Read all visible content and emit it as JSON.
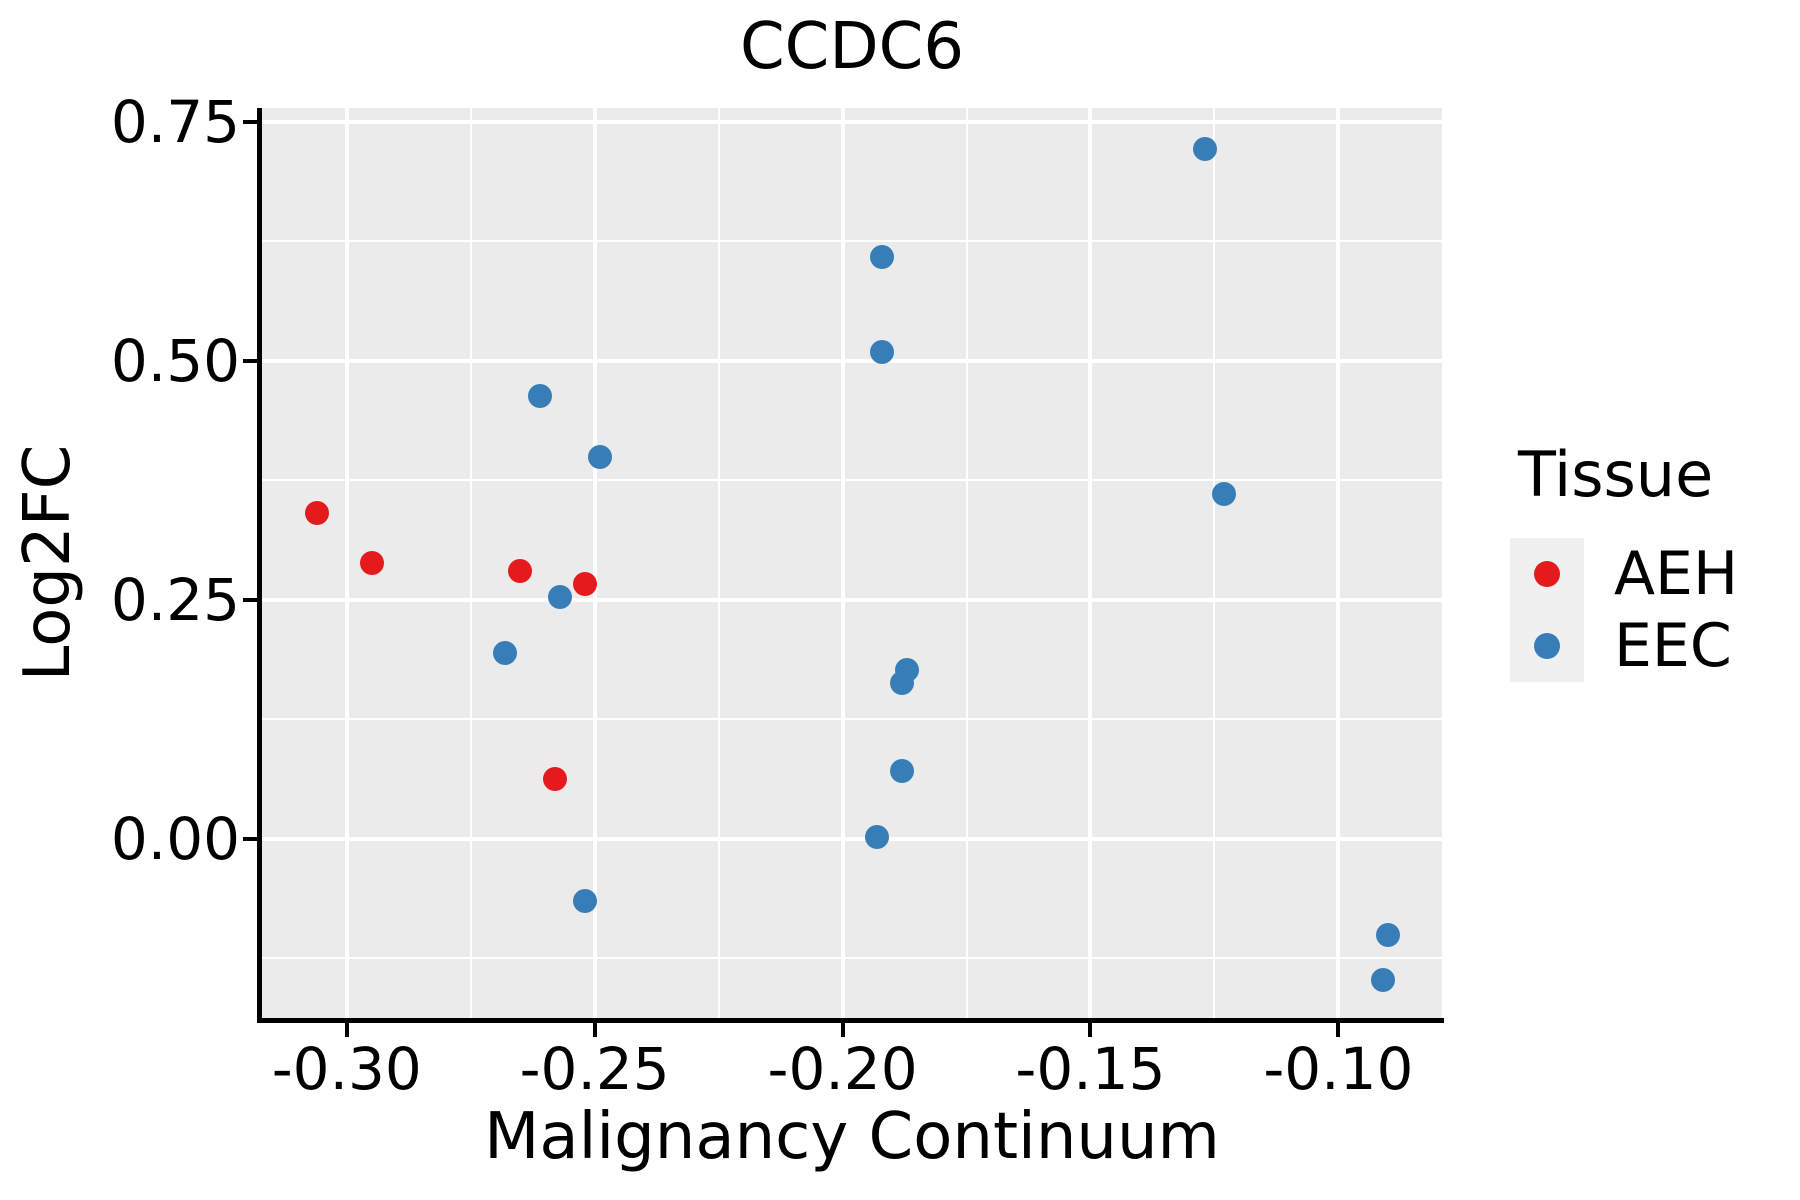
{
  "chart_data": {
    "type": "scatter",
    "title": "CCDC6",
    "xlabel": "Malignancy Continuum",
    "ylabel": "Log2FC",
    "xlim": [
      -0.3171,
      -0.0791
    ],
    "ylim": [
      -0.1873,
      0.7646
    ],
    "x_ticks": [
      -0.3,
      -0.25,
      -0.2,
      -0.15,
      -0.1
    ],
    "x_tick_labels": [
      "-0.30",
      "-0.25",
      "-0.20",
      "-0.15",
      "-0.10"
    ],
    "y_ticks": [
      0.0,
      0.25,
      0.5,
      0.75
    ],
    "y_tick_labels": [
      "0.00",
      "0.25",
      "0.50",
      "0.75"
    ],
    "minor_x_gridlines": [
      -0.275,
      -0.225,
      -0.175,
      -0.125
    ],
    "minor_y_gridlines": [
      -0.125,
      0.125,
      0.375,
      0.625
    ],
    "grid": "on",
    "panel_background": "#EBEBEB",
    "gridline_color": "#FFFFFF",
    "legend": {
      "title": "Tissue",
      "position": "right",
      "entries": [
        {
          "label": "AEH",
          "color": "#E41A1C"
        },
        {
          "label": "EEC",
          "color": "#377EB8"
        }
      ]
    },
    "series": [
      {
        "name": "AEH",
        "color": "#E41A1C",
        "points": [
          [
            -0.306,
            0.341
          ],
          [
            -0.295,
            0.289
          ],
          [
            -0.265,
            0.28
          ],
          [
            -0.252,
            0.267
          ],
          [
            -0.258,
            0.063
          ]
        ]
      },
      {
        "name": "EEC",
        "color": "#377EB8",
        "points": [
          [
            -0.261,
            0.463
          ],
          [
            -0.249,
            0.4
          ],
          [
            -0.257,
            0.253
          ],
          [
            -0.268,
            0.194
          ],
          [
            -0.252,
            -0.065
          ],
          [
            -0.192,
            0.609
          ],
          [
            -0.192,
            0.509
          ],
          [
            -0.187,
            0.177
          ],
          [
            -0.188,
            0.163
          ],
          [
            -0.188,
            0.071
          ],
          [
            -0.193,
            0.002
          ],
          [
            -0.127,
            0.722
          ],
          [
            -0.123,
            0.361
          ],
          [
            -0.09,
            -0.1
          ],
          [
            -0.091,
            -0.148
          ]
        ]
      }
    ]
  }
}
